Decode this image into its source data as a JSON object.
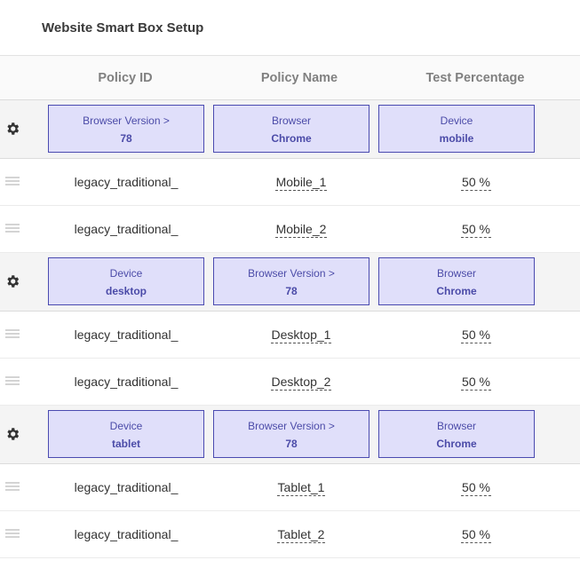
{
  "page": {
    "title": "Website Smart Box Setup"
  },
  "table": {
    "columns": [
      "Policy ID",
      "Policy Name",
      "Test Percentage"
    ],
    "groups": [
      {
        "conditions": [
          {
            "label": "Browser Version >",
            "value": "78"
          },
          {
            "label": "Browser",
            "value": "Chrome"
          },
          {
            "label": "Device",
            "value": "mobile"
          }
        ],
        "rows": [
          {
            "policy_id": "legacy_traditional_",
            "policy_name": "Mobile_1",
            "percentage": "50 %"
          },
          {
            "policy_id": "legacy_traditional_",
            "policy_name": "Mobile_2",
            "percentage": "50 %"
          }
        ]
      },
      {
        "conditions": [
          {
            "label": "Device",
            "value": "desktop"
          },
          {
            "label": "Browser Version >",
            "value": "78"
          },
          {
            "label": "Browser",
            "value": "Chrome"
          }
        ],
        "rows": [
          {
            "policy_id": "legacy_traditional_",
            "policy_name": "Desktop_1",
            "percentage": "50 %"
          },
          {
            "policy_id": "legacy_traditional_",
            "policy_name": "Desktop_2",
            "percentage": "50 %"
          }
        ]
      },
      {
        "conditions": [
          {
            "label": "Device",
            "value": "tablet"
          },
          {
            "label": "Browser Version >",
            "value": "78"
          },
          {
            "label": "Browser",
            "value": "Chrome"
          }
        ],
        "rows": [
          {
            "policy_id": "legacy_traditional_",
            "policy_name": "Tablet_1",
            "percentage": "50 %"
          },
          {
            "policy_id": "legacy_traditional_",
            "policy_name": "Tablet_2",
            "percentage": "50 %"
          }
        ]
      }
    ]
  },
  "icons": {
    "group_settings": "gear-icon",
    "row_handle": "drag-handle-icon"
  },
  "colors": {
    "chip_background": "#e0dffa",
    "chip_border": "#4a4ab0",
    "chip_text": "#4b4ba8"
  }
}
